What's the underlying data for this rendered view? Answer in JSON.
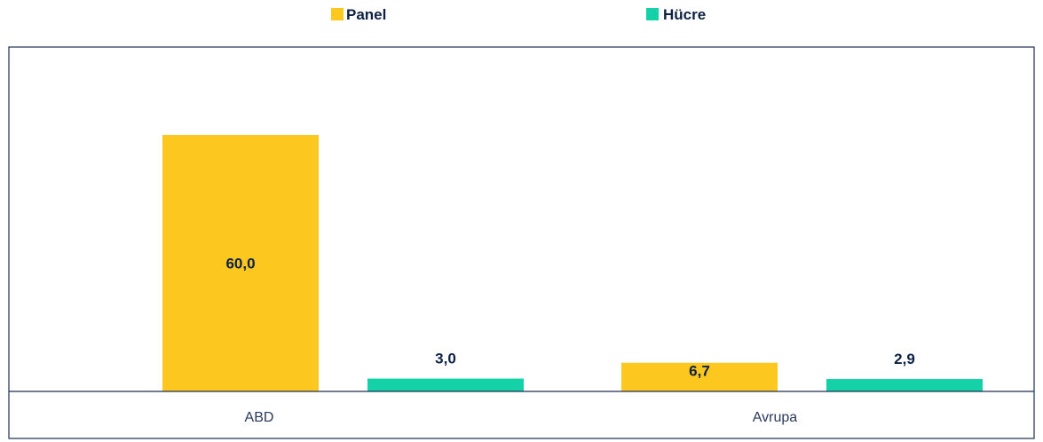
{
  "chart_data": {
    "type": "bar",
    "categories": [
      "ABD",
      "Avrupa"
    ],
    "series": [
      {
        "name": "Panel",
        "values": [
          60.0,
          6.7
        ],
        "labels": [
          "60,0",
          "6,7"
        ]
      },
      {
        "name": "Hücre",
        "values": [
          3.0,
          2.9
        ],
        "labels": [
          "3,0",
          "2,9"
        ]
      }
    ],
    "colors": [
      "#fcc71e",
      "#14d1a8"
    ],
    "xlabel": "",
    "ylabel": "",
    "ylim": [
      0,
      65
    ],
    "grid": false,
    "legend": "top-center"
  },
  "colors": {
    "frame": "#1d2f55",
    "label_text": "#0d2145",
    "category_text": "#2a3a5c"
  }
}
